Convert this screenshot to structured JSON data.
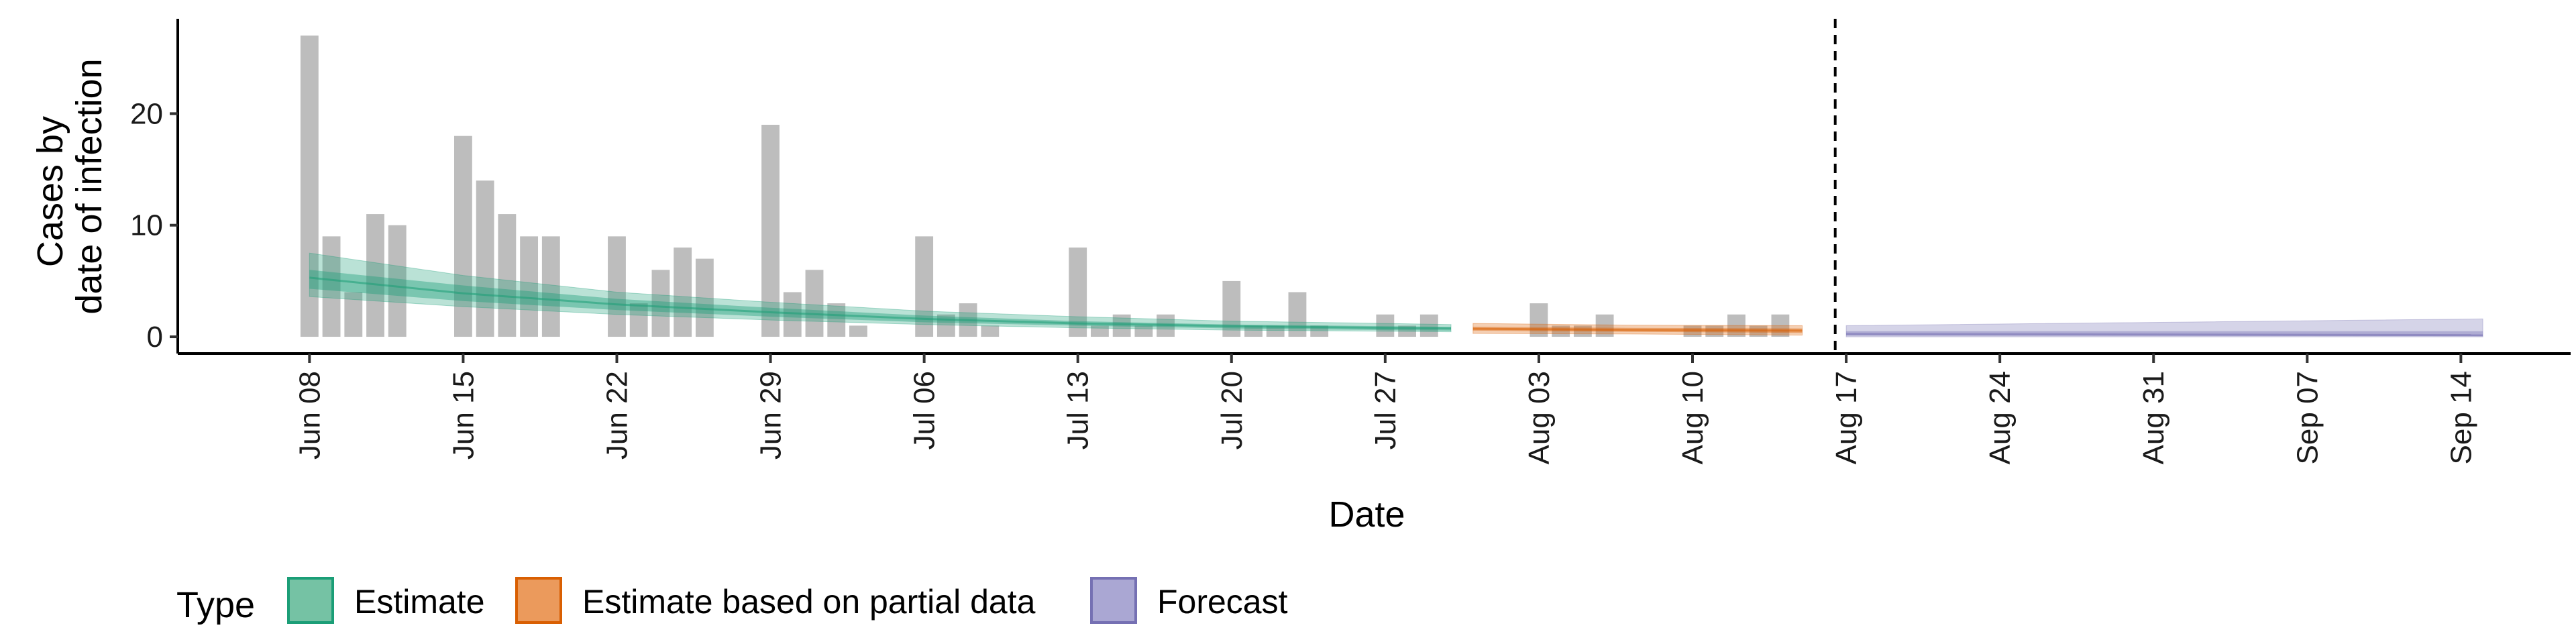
{
  "chart_data": {
    "type": "bar",
    "xlabel": "Date",
    "ylabel": [
      "Cases by",
      "date of infection"
    ],
    "x_range": [
      "2020-06-02",
      "2020-09-19"
    ],
    "ylim": [
      -1.5,
      28.5
    ],
    "yticks": [
      0,
      10,
      20
    ],
    "xticks": [
      {
        "date": "2020-06-08",
        "label": "Jun 08"
      },
      {
        "date": "2020-06-15",
        "label": "Jun 15"
      },
      {
        "date": "2020-06-22",
        "label": "Jun 22"
      },
      {
        "date": "2020-06-29",
        "label": "Jun 29"
      },
      {
        "date": "2020-07-06",
        "label": "Jul 06"
      },
      {
        "date": "2020-07-13",
        "label": "Jul 13"
      },
      {
        "date": "2020-07-20",
        "label": "Jul 20"
      },
      {
        "date": "2020-07-27",
        "label": "Jul 27"
      },
      {
        "date": "2020-08-03",
        "label": "Aug 03"
      },
      {
        "date": "2020-08-10",
        "label": "Aug 10"
      },
      {
        "date": "2020-08-17",
        "label": "Aug 17"
      },
      {
        "date": "2020-08-24",
        "label": "Aug 24"
      },
      {
        "date": "2020-08-31",
        "label": "Aug 31"
      },
      {
        "date": "2020-09-07",
        "label": "Sep 07"
      },
      {
        "date": "2020-09-14",
        "label": "Sep 14"
      }
    ],
    "forecast_start": "2020-08-16",
    "bars": {
      "start_date": "2020-06-08",
      "values": [
        27,
        9,
        4,
        11,
        10,
        0,
        0,
        18,
        14,
        11,
        9,
        9,
        0,
        0,
        9,
        3,
        6,
        8,
        7,
        0,
        0,
        19,
        4,
        6,
        3,
        1,
        0,
        0,
        9,
        2,
        3,
        1,
        0,
        0,
        0,
        8,
        1,
        2,
        1,
        2,
        0,
        0,
        5,
        1,
        1,
        4,
        1,
        0,
        0,
        2,
        1,
        2,
        0,
        0,
        0,
        0,
        3,
        1,
        1,
        2,
        0,
        0,
        0,
        1,
        1,
        2,
        1,
        2
      ]
    },
    "series": [
      {
        "name": "Estimate",
        "color": "#1b9e77",
        "points": [
          {
            "date": "2020-06-08",
            "median": 5.3,
            "inner": [
              4.3,
              6.0
            ],
            "outer": [
              3.6,
              7.5
            ]
          },
          {
            "date": "2020-06-15",
            "median": 3.9,
            "inner": [
              3.2,
              4.6
            ],
            "outer": [
              2.7,
              5.5
            ]
          },
          {
            "date": "2020-06-22",
            "median": 2.9,
            "inner": [
              2.4,
              3.4
            ],
            "outer": [
              2.0,
              4.0
            ]
          },
          {
            "date": "2020-06-29",
            "median": 2.2,
            "inner": [
              1.8,
              2.6
            ],
            "outer": [
              1.5,
              3.1
            ]
          },
          {
            "date": "2020-07-06",
            "median": 1.6,
            "inner": [
              1.3,
              1.9
            ],
            "outer": [
              1.1,
              2.3
            ]
          },
          {
            "date": "2020-07-13",
            "median": 1.2,
            "inner": [
              1.0,
              1.4
            ],
            "outer": [
              0.8,
              1.8
            ]
          },
          {
            "date": "2020-07-20",
            "median": 0.95,
            "inner": [
              0.75,
              1.1
            ],
            "outer": [
              0.6,
              1.4
            ]
          },
          {
            "date": "2020-07-27",
            "median": 0.8,
            "inner": [
              0.6,
              0.95
            ],
            "outer": [
              0.5,
              1.2
            ]
          },
          {
            "date": "2020-07-30",
            "median": 0.75,
            "inner": [
              0.55,
              0.9
            ],
            "outer": [
              0.45,
              1.1
            ]
          }
        ]
      },
      {
        "name": "Estimate based on partial data",
        "color": "#d95f02",
        "points": [
          {
            "date": "2020-07-31",
            "median": 0.72,
            "inner": [
              0.55,
              0.9
            ],
            "outer": [
              0.3,
              1.2
            ]
          },
          {
            "date": "2020-08-07",
            "median": 0.62,
            "inner": [
              0.45,
              0.8
            ],
            "outer": [
              0.25,
              1.05
            ]
          },
          {
            "date": "2020-08-15",
            "median": 0.55,
            "inner": [
              0.35,
              0.75
            ],
            "outer": [
              0.15,
              1.0
            ]
          }
        ]
      },
      {
        "name": "Forecast",
        "color": "#7570b3",
        "points": [
          {
            "date": "2020-08-17",
            "median": 0.25,
            "inner": [
              0.1,
              0.5
            ],
            "outer": [
              0.0,
              1.0
            ]
          },
          {
            "date": "2020-09-15",
            "median": 0.15,
            "inner": [
              0.05,
              0.5
            ],
            "outer": [
              0.0,
              1.6
            ]
          }
        ]
      }
    ],
    "legend": {
      "title": "Type",
      "position": "bottom",
      "items": [
        {
          "label": "Estimate",
          "fill": "#75c2a4",
          "stroke": "#1b9e77"
        },
        {
          "label": "Estimate based on partial data",
          "fill": "#eb9a5c",
          "stroke": "#d95f02"
        },
        {
          "label": "Forecast",
          "fill": "#aaa7d3",
          "stroke": "#7570b3"
        }
      ]
    },
    "grid": false
  }
}
